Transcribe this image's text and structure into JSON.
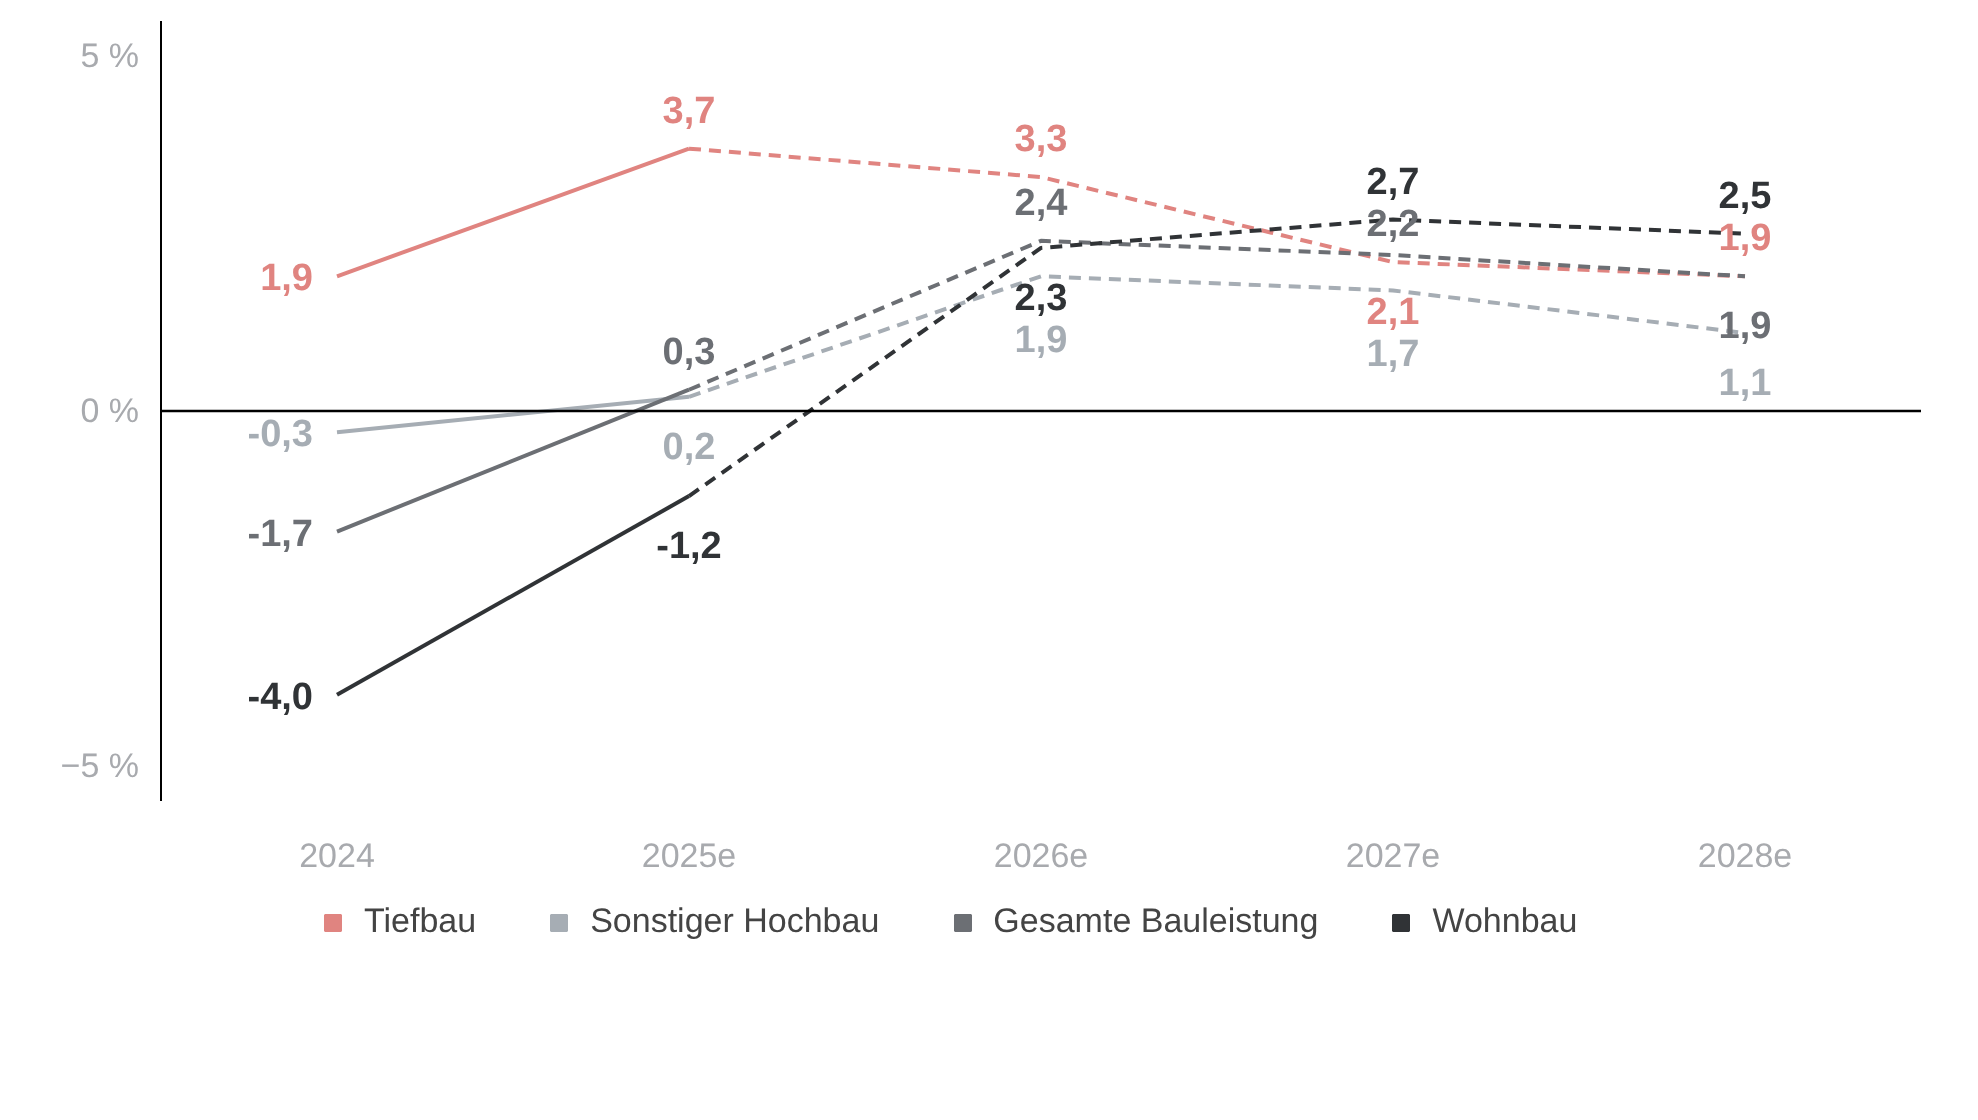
{
  "chart_data": {
    "type": "line",
    "categories": [
      "2024",
      "2025e",
      "2026e",
      "2027e",
      "2028e"
    ],
    "ylim": [
      -5.5,
      5.5
    ],
    "yticks": [
      {
        "value": 5,
        "label": "5 %"
      },
      {
        "value": 0,
        "label": "0 %"
      },
      {
        "value": -5,
        "label": "−5 %"
      }
    ],
    "series": [
      {
        "name": "Tiefbau",
        "color": "#e08480",
        "line_style": "solid",
        "values": [
          1.9,
          3.7,
          null,
          null,
          null
        ],
        "value_labels": [
          "1,9",
          "3,7",
          null,
          null,
          null
        ]
      },
      {
        "color": "#e08480",
        "line_style": "dashed",
        "values": [
          null,
          3.7,
          3.3,
          2.1,
          1.9
        ],
        "value_labels": [
          null,
          null,
          "3,3",
          "2,1",
          "1,9"
        ]
      },
      {
        "name": "Sonstiger Hochbau",
        "color": "#a6adb4",
        "line_style": "solid",
        "values": [
          -0.3,
          0.2,
          null,
          null,
          null
        ],
        "value_labels": [
          "-0,3",
          "0,2",
          null,
          null,
          null
        ]
      },
      {
        "color": "#a6adb4",
        "line_style": "dashed",
        "values": [
          null,
          0.2,
          1.9,
          1.7,
          1.1
        ],
        "value_labels": [
          null,
          null,
          "1,9",
          "1,7",
          "1,1"
        ]
      },
      {
        "name": "Gesamte Bauleistung",
        "color": "#6c6f74",
        "line_style": "solid",
        "values": [
          -1.7,
          0.3,
          null,
          null,
          null
        ],
        "value_labels": [
          "-1,7",
          "0,3",
          null,
          null,
          null
        ]
      },
      {
        "color": "#6c6f74",
        "line_style": "dashed",
        "values": [
          null,
          0.3,
          2.4,
          2.2,
          1.9
        ],
        "value_labels": [
          null,
          null,
          "2,4",
          "2,2",
          "1,9"
        ]
      },
      {
        "name": "Wohnbau",
        "color": "#303336",
        "line_style": "solid",
        "values": [
          -4.0,
          -1.2,
          null,
          null,
          null
        ],
        "value_labels": [
          "-4,0",
          "-1,2",
          null,
          null,
          null
        ]
      },
      {
        "color": "#303336",
        "line_style": "dashed",
        "values": [
          null,
          -1.2,
          2.3,
          2.7,
          2.5
        ],
        "value_labels": [
          null,
          null,
          "2,3",
          "2,7",
          "2,5"
        ]
      }
    ],
    "ref_lines": [
      {
        "axis": "y",
        "value": 0,
        "color": "#000000"
      }
    ],
    "legend": "bottom",
    "grid": false,
    "marker": "none"
  }
}
